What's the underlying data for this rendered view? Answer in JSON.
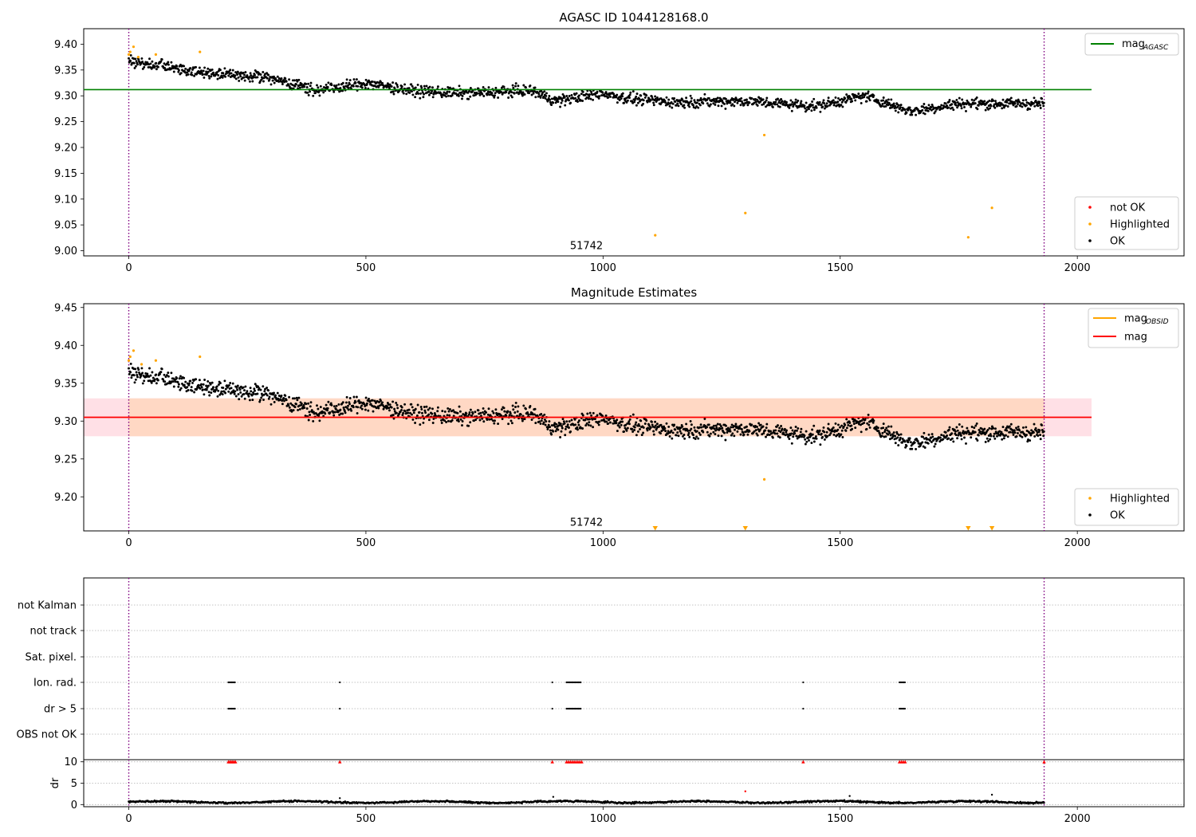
{
  "chart_data": [
    {
      "type": "scatter",
      "title": "AGASC ID 1044128168.0",
      "xlabel": "",
      "ylabel": "",
      "xlim": [
        -95,
        2225
      ],
      "ylim": [
        8.99,
        9.43
      ],
      "x_ticks": [
        0,
        500,
        1000,
        1500,
        2000
      ],
      "y_ticks": [
        9.0,
        9.05,
        9.1,
        9.15,
        9.2,
        9.25,
        9.3,
        9.35,
        9.4
      ],
      "y_tick_labels": [
        "9.00",
        "9.05",
        "9.10",
        "9.15",
        "9.20",
        "9.25",
        "9.30",
        "9.35",
        "9.40"
      ],
      "annotation": {
        "text": "51742",
        "x": 965,
        "y": 9.003
      },
      "vlines": [
        0,
        1930
      ],
      "hline": {
        "name": "mag_AGASC",
        "y": 9.312,
        "x_range": [
          -95,
          2030
        ],
        "color": "#008000"
      },
      "ok_trend": [
        [
          0,
          9.368
        ],
        [
          150,
          9.345
        ],
        [
          300,
          9.335
        ],
        [
          400,
          9.31
        ],
        [
          500,
          9.325
        ],
        [
          600,
          9.31
        ],
        [
          700,
          9.305
        ],
        [
          850,
          9.31
        ],
        [
          900,
          9.29
        ],
        [
          1000,
          9.305
        ],
        [
          1050,
          9.295
        ],
        [
          1150,
          9.288
        ],
        [
          1300,
          9.29
        ],
        [
          1450,
          9.28
        ],
        [
          1550,
          9.3
        ],
        [
          1650,
          9.27
        ],
        [
          1750,
          9.285
        ],
        [
          1850,
          9.285
        ],
        [
          1930,
          9.285
        ]
      ],
      "highlighted": [
        [
          0,
          9.38
        ],
        [
          3,
          9.385
        ],
        [
          10,
          9.395
        ],
        [
          20,
          9.375
        ],
        [
          57,
          9.38
        ],
        [
          150,
          9.385
        ],
        [
          1110,
          9.03
        ],
        [
          1300,
          9.073
        ],
        [
          1340,
          9.224
        ],
        [
          1770,
          9.026
        ],
        [
          1820,
          9.083
        ]
      ],
      "legends": [
        {
          "position": "upper-right",
          "entries": [
            {
              "label": "mag",
              "sub": "AGASC",
              "color": "#008000",
              "kind": "line"
            }
          ]
        },
        {
          "position": "lower-right",
          "entries": [
            {
              "label": "not OK",
              "color": "#ff0000",
              "kind": "dot"
            },
            {
              "label": "Highlighted",
              "color": "#ffa500",
              "kind": "dot"
            },
            {
              "label": "OK",
              "color": "#000000",
              "kind": "dot"
            }
          ]
        }
      ]
    },
    {
      "type": "scatter",
      "title": "Magnitude Estimates",
      "xlabel": "",
      "ylabel": "",
      "xlim": [
        -95,
        2225
      ],
      "ylim": [
        9.155,
        9.455
      ],
      "x_ticks": [
        0,
        500,
        1000,
        1500,
        2000
      ],
      "y_ticks": [
        9.2,
        9.25,
        9.3,
        9.35,
        9.4,
        9.45
      ],
      "y_tick_labels": [
        "9.20",
        "9.25",
        "9.30",
        "9.35",
        "9.40",
        "9.45"
      ],
      "annotation": {
        "text": "51742",
        "x": 965,
        "y": 9.162
      },
      "vlines": [
        0,
        1930
      ],
      "band": {
        "y_range": [
          9.28,
          9.33
        ],
        "x_range": [
          -95,
          2030
        ],
        "orange_x_range": [
          0,
          1930
        ]
      },
      "hline": {
        "name": "mag",
        "y": 9.305,
        "x_range": [
          -95,
          2030
        ],
        "color": "#ff0000"
      },
      "ok_trend": [
        [
          0,
          9.365
        ],
        [
          150,
          9.345
        ],
        [
          300,
          9.335
        ],
        [
          400,
          9.31
        ],
        [
          500,
          9.325
        ],
        [
          600,
          9.31
        ],
        [
          700,
          9.305
        ],
        [
          850,
          9.31
        ],
        [
          900,
          9.29
        ],
        [
          1000,
          9.305
        ],
        [
          1050,
          9.295
        ],
        [
          1150,
          9.288
        ],
        [
          1300,
          9.29
        ],
        [
          1450,
          9.28
        ],
        [
          1550,
          9.3
        ],
        [
          1650,
          9.27
        ],
        [
          1750,
          9.285
        ],
        [
          1850,
          9.285
        ],
        [
          1930,
          9.285
        ]
      ],
      "highlighted": [
        [
          0,
          9.38
        ],
        [
          3,
          9.385
        ],
        [
          10,
          9.393
        ],
        [
          27,
          9.375
        ],
        [
          57,
          9.38
        ],
        [
          150,
          9.385
        ],
        [
          1340,
          9.223
        ]
      ],
      "below_range_markers": [
        1110,
        1300,
        1770,
        1820
      ],
      "legends": [
        {
          "position": "upper-right",
          "entries": [
            {
              "label": "mag",
              "sub": "OBSID",
              "color": "#ffa500",
              "kind": "line"
            },
            {
              "label": "mag",
              "sub": "",
              "color": "#ff0000",
              "kind": "line"
            }
          ]
        },
        {
          "position": "lower-right",
          "entries": [
            {
              "label": "Highlighted",
              "color": "#ffa500",
              "kind": "dot"
            },
            {
              "label": "OK",
              "color": "#000000",
              "kind": "dot"
            }
          ]
        }
      ]
    },
    {
      "type": "scatter",
      "title": "",
      "xlabel": "",
      "ylabel": "",
      "xlim": [
        -95,
        2225
      ],
      "vlines": [
        0,
        1930
      ],
      "flag_rows": [
        "not Kalman",
        "not track",
        "Sat. pixel.",
        "Ion. rad.",
        "dr > 5",
        "OBS not OK"
      ],
      "flag_points": {
        "Ion. rad.": [
          [
            210,
            225
          ],
          [
            445,
            447
          ],
          [
            893,
            895
          ],
          [
            923,
            955
          ],
          [
            1422,
            1424
          ],
          [
            1625,
            1637
          ]
        ],
        "dr > 5": [
          [
            210,
            225
          ],
          [
            445,
            447
          ],
          [
            893,
            895
          ],
          [
            923,
            955
          ],
          [
            1422,
            1424
          ],
          [
            1625,
            1637
          ]
        ]
      }
    },
    {
      "type": "scatter",
      "title": "",
      "xlabel": "",
      "ylabel": "dr",
      "xlim": [
        -95,
        2225
      ],
      "ylim": [
        -0.5,
        10.5
      ],
      "x_ticks": [
        0,
        500,
        1000,
        1500,
        2000
      ],
      "y_ticks": [
        0,
        5,
        10
      ],
      "y_tick_labels": [
        "0",
        "5",
        "10"
      ],
      "vlines": [
        0,
        1930
      ],
      "capped_points_x": [
        210,
        213,
        216,
        219,
        222,
        225,
        445,
        893,
        923,
        927,
        931,
        935,
        939,
        943,
        947,
        951,
        955,
        1422,
        1625,
        1629,
        1633,
        1637,
        1930
      ],
      "outliers": [
        [
          1300,
          3.1
        ],
        [
          1520,
          2.0
        ],
        [
          1820,
          2.3
        ],
        [
          895,
          1.8
        ],
        [
          445,
          1.5
        ]
      ]
    }
  ]
}
